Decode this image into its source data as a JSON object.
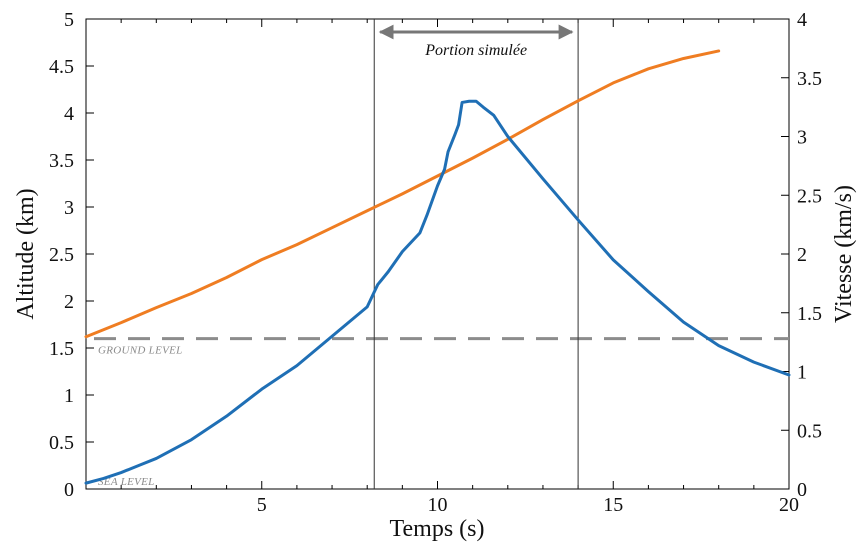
{
  "chart_data": {
    "type": "line",
    "xlabel": "Temps (s)",
    "ylabel_left": "Altitude (km)",
    "ylabel_right": "Vitesse (km/s)",
    "xlim": [
      0,
      20
    ],
    "ylim_left": [
      0,
      5
    ],
    "ylim_right": [
      0,
      4
    ],
    "x_ticks": [
      5,
      10,
      15,
      20
    ],
    "y_ticks_left": [
      0,
      0.5,
      1,
      1.5,
      2,
      2.5,
      3,
      3.5,
      4,
      4.5,
      5
    ],
    "y_ticks_right": [
      0,
      0.5,
      1,
      1.5,
      2,
      2.5,
      3,
      3.5,
      4
    ],
    "x_tick_labels": [
      "5",
      "10",
      "15",
      "20"
    ],
    "y_tick_labels_left": [
      "0",
      "0.5",
      "1",
      "1.5",
      "2",
      "2.5",
      "3",
      "3.5",
      "4",
      "4.5",
      "5"
    ],
    "y_tick_labels_right": [
      "0",
      "0.5",
      "1",
      "1.5",
      "2",
      "2.5",
      "3",
      "3.5",
      "4"
    ],
    "grid": false,
    "series": [
      {
        "axis": "left",
        "color": "#ef7d22",
        "x": [
          0,
          1,
          2,
          3,
          4,
          5,
          6,
          7,
          8,
          9,
          10,
          11,
          12,
          13,
          14,
          15,
          16,
          17,
          18
        ],
        "y": [
          1.62,
          1.77,
          1.93,
          2.08,
          2.25,
          2.44,
          2.6,
          2.78,
          2.96,
          3.14,
          3.33,
          3.52,
          3.72,
          3.93,
          4.13,
          4.32,
          4.47,
          4.58,
          4.66
        ]
      },
      {
        "axis": "right",
        "color": "#1f6fb5",
        "x": [
          0,
          0.5,
          1,
          1.5,
          2,
          3,
          4,
          5,
          6,
          7,
          8,
          8.3,
          8.6,
          9,
          9.5,
          9.7,
          10,
          10.2,
          10.3,
          10.5,
          10.6,
          10.7,
          10.9,
          11.1,
          11.3,
          11.6,
          12,
          13,
          14,
          15,
          16,
          17,
          18,
          19,
          20
        ],
        "y": [
          0.05,
          0.09,
          0.14,
          0.2,
          0.26,
          0.42,
          0.62,
          0.85,
          1.05,
          1.3,
          1.55,
          1.74,
          1.85,
          2.02,
          2.18,
          2.33,
          2.58,
          2.72,
          2.87,
          3.02,
          3.1,
          3.29,
          3.3,
          3.3,
          3.25,
          3.18,
          3.0,
          2.64,
          2.29,
          1.95,
          1.68,
          1.42,
          1.22,
          1.08,
          0.97
        ]
      }
    ],
    "ground_level": 1.6,
    "ground_level_label": "GROUND LEVEL",
    "sea_level_label": "SEA LEVEL",
    "simulated_portion": {
      "x_start": 8.2,
      "x_end": 14.0,
      "label": "Portion simulée"
    }
  },
  "colors": {
    "orange": "#ef7d22",
    "blue": "#1f6fb5",
    "ground": "#8c8c8c",
    "axes": "#000000",
    "vline": "#333333",
    "arrow": "#777777"
  }
}
